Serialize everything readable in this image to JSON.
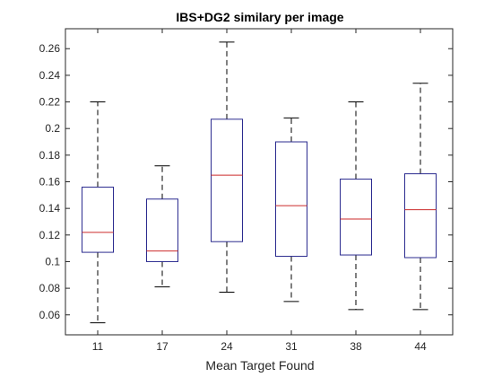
{
  "chart_data": {
    "type": "box",
    "title": "IBS+DG2 similary per image",
    "xlabel": "Mean Target Found",
    "ylabel": "",
    "categories": [
      "11",
      "17",
      "24",
      "31",
      "38",
      "44"
    ],
    "boxes": [
      {
        "category": "11",
        "min": 0.054,
        "q1": 0.107,
        "median": 0.122,
        "q3": 0.156,
        "max": 0.22
      },
      {
        "category": "17",
        "min": 0.081,
        "q1": 0.1,
        "median": 0.108,
        "q3": 0.147,
        "max": 0.172
      },
      {
        "category": "24",
        "min": 0.077,
        "q1": 0.115,
        "median": 0.165,
        "q3": 0.207,
        "max": 0.265
      },
      {
        "category": "31",
        "min": 0.07,
        "q1": 0.104,
        "median": 0.142,
        "q3": 0.19,
        "max": 0.208
      },
      {
        "category": "38",
        "min": 0.064,
        "q1": 0.105,
        "median": 0.132,
        "q3": 0.162,
        "max": 0.22
      },
      {
        "category": "44",
        "min": 0.064,
        "q1": 0.103,
        "median": 0.139,
        "q3": 0.166,
        "max": 0.234
      }
    ],
    "ylim": [
      0.045,
      0.275
    ],
    "yticks": [
      "0.06",
      "0.08",
      "0.1",
      "0.12",
      "0.14",
      "0.16",
      "0.18",
      "0.2",
      "0.22",
      "0.24",
      "0.26"
    ],
    "grid": false,
    "legend": "none",
    "colors": {
      "box": "#2b2b8f",
      "median": "#cc2b2b",
      "whisker": "#000000",
      "axis": "#262626"
    }
  }
}
